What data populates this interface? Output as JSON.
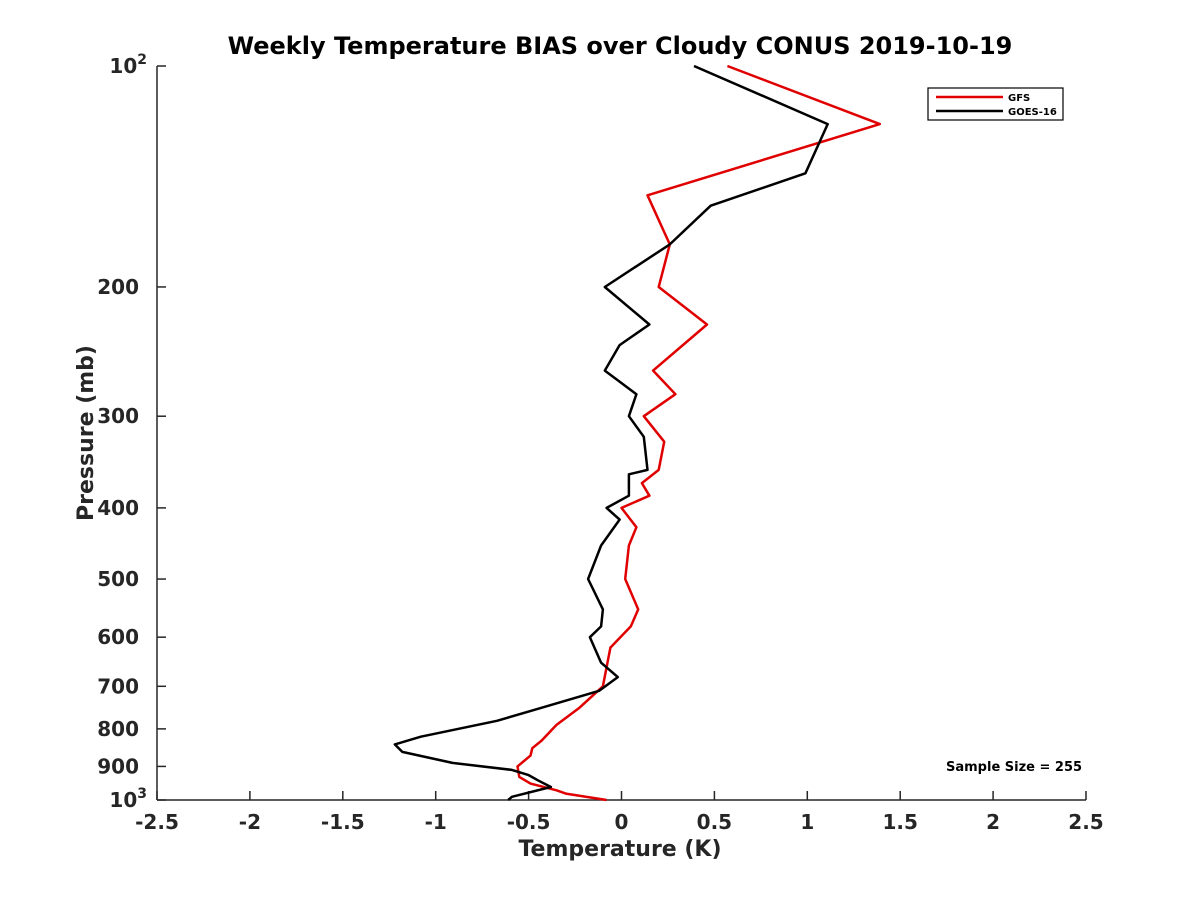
{
  "chart_data": {
    "type": "line",
    "title": "Weekly Temperature BIAS over Cloudy CONUS 2019-10-19",
    "xlabel": "Temperature (K)",
    "ylabel": "Pressure (mb)",
    "xlim": [
      -2.5,
      2.5
    ],
    "ylim": [
      100,
      1000
    ],
    "y_scale": "log",
    "y_reversed": true,
    "x_ticks": [
      "-2.5",
      "-2",
      "-1.5",
      "-1",
      "-0.5",
      "0",
      "0.5",
      "1",
      "1.5",
      "2",
      "2.5"
    ],
    "y_ticks": [
      {
        "value": 100,
        "label": "10",
        "exp": "2"
      },
      {
        "value": 200,
        "label": "200"
      },
      {
        "value": 300,
        "label": "300"
      },
      {
        "value": 400,
        "label": "400"
      },
      {
        "value": 500,
        "label": "500"
      },
      {
        "value": 600,
        "label": "600"
      },
      {
        "value": 700,
        "label": "700"
      },
      {
        "value": 800,
        "label": "800"
      },
      {
        "value": 900,
        "label": "900"
      },
      {
        "value": 1000,
        "label": "10",
        "exp": "3"
      }
    ],
    "grid": false,
    "legend_position": "top-right",
    "annotation": "Sample Size = 255",
    "series": [
      {
        "name": "GFS",
        "color": "#e00000",
        "points": [
          [
            0.57,
            100
          ],
          [
            1.39,
            120
          ],
          [
            0.14,
            150
          ],
          [
            0.26,
            175
          ],
          [
            0.2,
            200
          ],
          [
            0.46,
            225
          ],
          [
            0.17,
            260
          ],
          [
            0.29,
            280
          ],
          [
            0.12,
            300
          ],
          [
            0.23,
            325
          ],
          [
            0.2,
            355
          ],
          [
            0.11,
            370
          ],
          [
            0.15,
            385
          ],
          [
            0.0,
            400
          ],
          [
            0.08,
            425
          ],
          [
            0.04,
            450
          ],
          [
            0.02,
            500
          ],
          [
            0.09,
            550
          ],
          [
            0.05,
            580
          ],
          [
            -0.06,
            620
          ],
          [
            -0.1,
            700
          ],
          [
            -0.23,
            750
          ],
          [
            -0.35,
            790
          ],
          [
            -0.43,
            830
          ],
          [
            -0.48,
            850
          ],
          [
            -0.49,
            870
          ],
          [
            -0.56,
            900
          ],
          [
            -0.55,
            930
          ],
          [
            -0.49,
            950
          ],
          [
            -0.35,
            970
          ],
          [
            -0.3,
            980
          ],
          [
            -0.08,
            1000
          ]
        ]
      },
      {
        "name": "GOES-16",
        "color": "#000000",
        "points": [
          [
            0.39,
            100
          ],
          [
            1.11,
            120
          ],
          [
            0.99,
            140
          ],
          [
            0.48,
            155
          ],
          [
            0.26,
            175
          ],
          [
            -0.09,
            200
          ],
          [
            0.15,
            225
          ],
          [
            -0.01,
            240
          ],
          [
            -0.09,
            260
          ],
          [
            0.08,
            280
          ],
          [
            0.04,
            300
          ],
          [
            0.12,
            320
          ],
          [
            0.14,
            355
          ],
          [
            0.04,
            360
          ],
          [
            0.04,
            385
          ],
          [
            -0.08,
            400
          ],
          [
            -0.01,
            415
          ],
          [
            -0.11,
            450
          ],
          [
            -0.18,
            500
          ],
          [
            -0.1,
            550
          ],
          [
            -0.11,
            580
          ],
          [
            -0.17,
            600
          ],
          [
            -0.11,
            650
          ],
          [
            -0.02,
            680
          ],
          [
            -0.12,
            710
          ],
          [
            -0.44,
            750
          ],
          [
            -0.67,
            780
          ],
          [
            -1.08,
            820
          ],
          [
            -1.22,
            840
          ],
          [
            -1.18,
            860
          ],
          [
            -0.91,
            890
          ],
          [
            -0.59,
            910
          ],
          [
            -0.5,
            925
          ],
          [
            -0.45,
            940
          ],
          [
            -0.38,
            960
          ],
          [
            -0.59,
            990
          ],
          [
            -0.61,
            1000
          ]
        ]
      }
    ]
  }
}
